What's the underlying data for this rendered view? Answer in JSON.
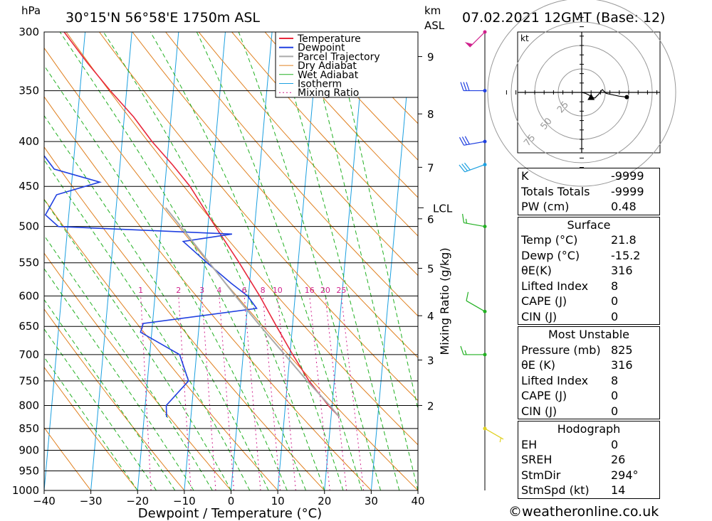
{
  "header": {
    "pressure_unit": "hPa",
    "location": "30°15'N 56°58'E 1750m ASL",
    "km_label": "km",
    "asl_label": "ASL",
    "datetime": "07.02.2021 12GMT (Base: 12)"
  },
  "credit": "©weatheronline.co.uk",
  "colors": {
    "temperature": "#e8283c",
    "dewpoint": "#2040e0",
    "parcel": "#aaaaaa",
    "dry_adiabat": "#e08020",
    "wet_adiabat": "#22b022",
    "isotherm": "#1ca0e0",
    "mixing_ratio": "#d0208c"
  },
  "chart_data": {
    "type": "line",
    "title": "",
    "xlabel": "Dewpoint / Temperature (°C)",
    "ylabel": "hPa",
    "xlim": [
      -40,
      40
    ],
    "ylim": [
      1000,
      300
    ],
    "y_scale": "log",
    "skew": true,
    "x_ticks": [
      "−40",
      "−30",
      "−20",
      "−10",
      "0",
      "10",
      "20",
      "30",
      "40"
    ],
    "pressure_levels": [
      300,
      350,
      400,
      450,
      500,
      550,
      600,
      650,
      700,
      750,
      800,
      850,
      900,
      950,
      1000
    ],
    "height_km_ticks": [
      {
        "km": "2",
        "p": 800
      },
      {
        "km": "3",
        "p": 710
      },
      {
        "km": "4",
        "p": 632
      },
      {
        "km": "5",
        "p": 558
      },
      {
        "km": "6",
        "p": 490
      },
      {
        "km": "7",
        "p": 428
      },
      {
        "km": "8",
        "p": 372
      },
      {
        "km": "9",
        "p": 320
      }
    ],
    "lcl": {
      "label": "LCL",
      "p": 476
    },
    "mixing_ratio_axis_label": "Mixing Ratio (g/kg)",
    "mixing_ratio_labels": [
      "1",
      "2",
      "3",
      "4",
      "6",
      "8",
      "10",
      "16",
      "20",
      "25"
    ],
    "legend": [
      "Temperature",
      "Dewpoint",
      "Parcel Trajectory",
      "Dry Adiabat",
      "Wet Adiabat",
      "Isotherm",
      "Mixing Ratio"
    ],
    "legend_position": "top-right",
    "series": [
      {
        "name": "Temperature",
        "points": [
          [
            825,
            21.8
          ],
          [
            800,
            19.2
          ],
          [
            750,
            14.6
          ],
          [
            700,
            10.6
          ],
          [
            650,
            6.6
          ],
          [
            600,
            2.4
          ],
          [
            550,
            -2.6
          ],
          [
            500,
            -8.4
          ],
          [
            450,
            -14.6
          ],
          [
            425,
            -18.8
          ],
          [
            400,
            -23.6
          ],
          [
            375,
            -28.0
          ],
          [
            350,
            -33.5
          ],
          [
            325,
            -39.0
          ],
          [
            300,
            -44.5
          ]
        ]
      },
      {
        "name": "Dewpoint",
        "points": [
          [
            825,
            -15.2
          ],
          [
            800,
            -15.5
          ],
          [
            750,
            -11.2
          ],
          [
            700,
            -13.6
          ],
          [
            660,
            -22.4
          ],
          [
            645,
            -22.0
          ],
          [
            620,
            2.0
          ],
          [
            600,
            -0.2
          ],
          [
            580,
            -4.0
          ],
          [
            550,
            -9.5
          ],
          [
            520,
            -15.0
          ],
          [
            510,
            -4.7
          ],
          [
            500,
            -42.0
          ],
          [
            485,
            -45.0
          ],
          [
            460,
            -43.0
          ],
          [
            445,
            -34.0
          ],
          [
            430,
            -44.0
          ],
          [
            400,
            -49.0
          ],
          [
            385,
            -54.5
          ],
          [
            350,
            -55.3
          ],
          [
            335,
            -56.2
          ],
          [
            320,
            -63.5
          ],
          [
            300,
            -66.8
          ]
        ]
      },
      {
        "name": "Parcel Trajectory",
        "points": [
          [
            825,
            21.8
          ],
          [
            800,
            19.5
          ],
          [
            750,
            14.2
          ],
          [
            700,
            8.9
          ],
          [
            650,
            3.2
          ],
          [
            600,
            -2.8
          ],
          [
            550,
            -9.0
          ],
          [
            500,
            -15.8
          ],
          [
            476,
            -19.4
          ]
        ]
      }
    ]
  },
  "wind_barbs": [
    {
      "p": 300,
      "dir": 225,
      "speed": 50
    },
    {
      "p": 350,
      "dir": 270,
      "speed": 30
    },
    {
      "p": 400,
      "dir": 260,
      "speed": 30
    },
    {
      "p": 425,
      "dir": 250,
      "speed": 30
    },
    {
      "p": 500,
      "dir": 280,
      "speed": 15
    },
    {
      "p": 625,
      "dir": 300,
      "speed": 10
    },
    {
      "p": 700,
      "dir": 270,
      "speed": 15
    },
    {
      "p": 850,
      "dir": 120,
      "speed": 5
    }
  ],
  "hodograph": {
    "unit": "kt",
    "rings": [
      "25",
      "50",
      "75"
    ],
    "points": [
      [
        0,
        0
      ],
      [
        4,
        -1
      ],
      [
        8,
        -3
      ],
      [
        10,
        -5
      ],
      [
        14,
        -6
      ],
      [
        18,
        -2
      ],
      [
        22,
        3
      ],
      [
        26,
        -1
      ],
      [
        30,
        -2
      ],
      [
        40,
        -4
      ],
      [
        48,
        -5
      ]
    ],
    "storm_motion": [
      10,
      -5
    ]
  },
  "indices": [
    {
      "label": "K",
      "value": "-9999"
    },
    {
      "label": "Totals Totals",
      "value": "-9999"
    },
    {
      "label": "PW (cm)",
      "value": "0.48"
    }
  ],
  "surface": {
    "title": "Surface",
    "rows": [
      {
        "label": "Temp (°C)",
        "value": "21.8"
      },
      {
        "label": "Dewp (°C)",
        "value": "-15.2"
      },
      {
        "label": "θE(K)",
        "value": "316"
      },
      {
        "label": "Lifted Index",
        "value": "8"
      },
      {
        "label": "CAPE (J)",
        "value": "0"
      },
      {
        "label": "CIN (J)",
        "value": "0"
      }
    ]
  },
  "most_unstable": {
    "title": "Most Unstable",
    "rows": [
      {
        "label": "Pressure (mb)",
        "value": "825"
      },
      {
        "label": "θE (K)",
        "value": "316"
      },
      {
        "label": "Lifted Index",
        "value": "8"
      },
      {
        "label": "CAPE (J)",
        "value": "0"
      },
      {
        "label": "CIN (J)",
        "value": "0"
      }
    ]
  },
  "hodograph_box": {
    "title": "Hodograph",
    "rows": [
      {
        "label": "EH",
        "value": "0"
      },
      {
        "label": "SREH",
        "value": "26"
      },
      {
        "label": "StmDir",
        "value": "294°"
      },
      {
        "label": "StmSpd (kt)",
        "value": "14"
      }
    ]
  }
}
